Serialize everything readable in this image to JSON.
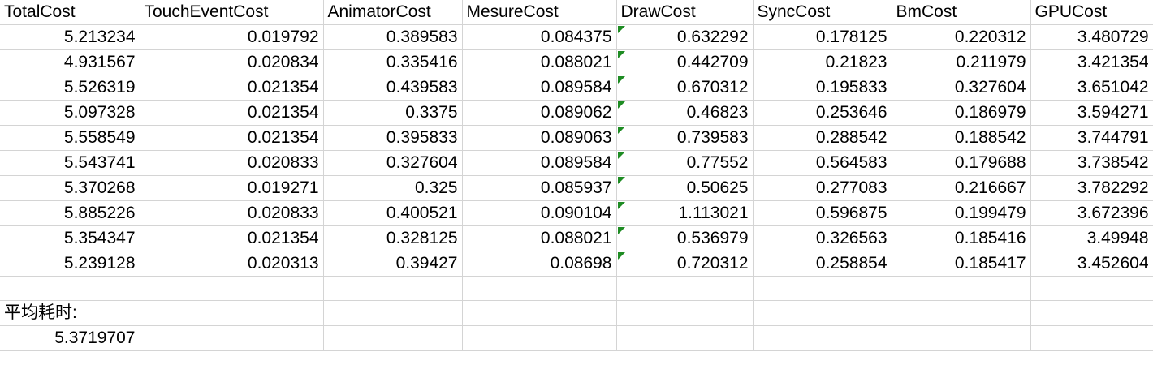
{
  "headers": [
    "TotalCost",
    "TouchEventCost",
    "AnimatorCost",
    "MesureCost",
    "DrawCost",
    "SyncCost",
    "BmCost",
    "GPUCost"
  ],
  "rows": [
    [
      "5.213234",
      "0.019792",
      "0.389583",
      "0.084375",
      "0.632292",
      "0.178125",
      "0.220312",
      "3.480729"
    ],
    [
      "4.931567",
      "0.020834",
      "0.335416",
      "0.088021",
      "0.442709",
      "0.21823",
      "0.211979",
      "3.421354"
    ],
    [
      "5.526319",
      "0.021354",
      "0.439583",
      "0.089584",
      "0.670312",
      "0.195833",
      "0.327604",
      "3.651042"
    ],
    [
      "5.097328",
      "0.021354",
      "0.3375",
      "0.089062",
      "0.46823",
      "0.253646",
      "0.186979",
      "3.594271"
    ],
    [
      "5.558549",
      "0.021354",
      "0.395833",
      "0.089063",
      "0.739583",
      "0.288542",
      "0.188542",
      "3.744791"
    ],
    [
      "5.543741",
      "0.020833",
      "0.327604",
      "0.089584",
      "0.77552",
      "0.564583",
      "0.179688",
      "3.738542"
    ],
    [
      "5.370268",
      "0.019271",
      "0.325",
      "0.085937",
      "0.50625",
      "0.277083",
      "0.216667",
      "3.782292"
    ],
    [
      "5.885226",
      "0.020833",
      "0.400521",
      "0.090104",
      "1.113021",
      "0.596875",
      "0.199479",
      "3.672396"
    ],
    [
      "5.354347",
      "0.021354",
      "0.328125",
      "0.088021",
      "0.536979",
      "0.326563",
      "0.185416",
      "3.49948"
    ],
    [
      "5.239128",
      "0.020313",
      "0.39427",
      "0.08698",
      "0.720312",
      "0.258854",
      "0.185417",
      "3.452604"
    ]
  ],
  "summary": {
    "label": "平均耗时:",
    "value": "5.3719707"
  },
  "colors": {
    "gridline": "#d4d4d4",
    "comment_marker": "#1e8c23"
  },
  "icons": {
    "comment_marker": "comment-indicator-icon"
  }
}
